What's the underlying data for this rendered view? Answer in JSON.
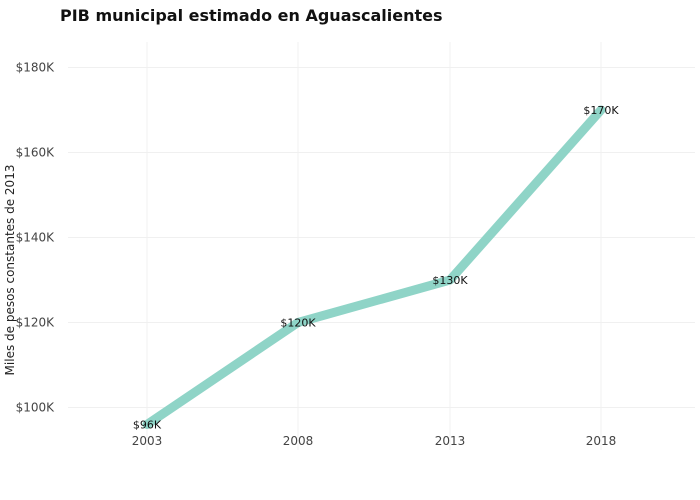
{
  "chart_data": {
    "type": "line",
    "title": "PIB municipal estimado en Aguascalientes",
    "xlabel": "",
    "ylabel": "Miles de pesos constantes de 2013",
    "categories": [
      "2003",
      "2008",
      "2013",
      "2018"
    ],
    "series": [
      {
        "values": [
          96000,
          120000,
          130000,
          170000
        ],
        "data_labels": [
          "$96K",
          "$120K",
          "$130K",
          "$170K"
        ],
        "color": "#8fd4c7"
      }
    ],
    "yticks": [
      100000,
      120000,
      140000,
      160000,
      180000
    ],
    "ytick_labels": [
      "$100K",
      "$120K",
      "$140K",
      "$160K",
      "$180K"
    ],
    "ylim": [
      90000,
      186000
    ],
    "grid": true,
    "legend": "none"
  }
}
